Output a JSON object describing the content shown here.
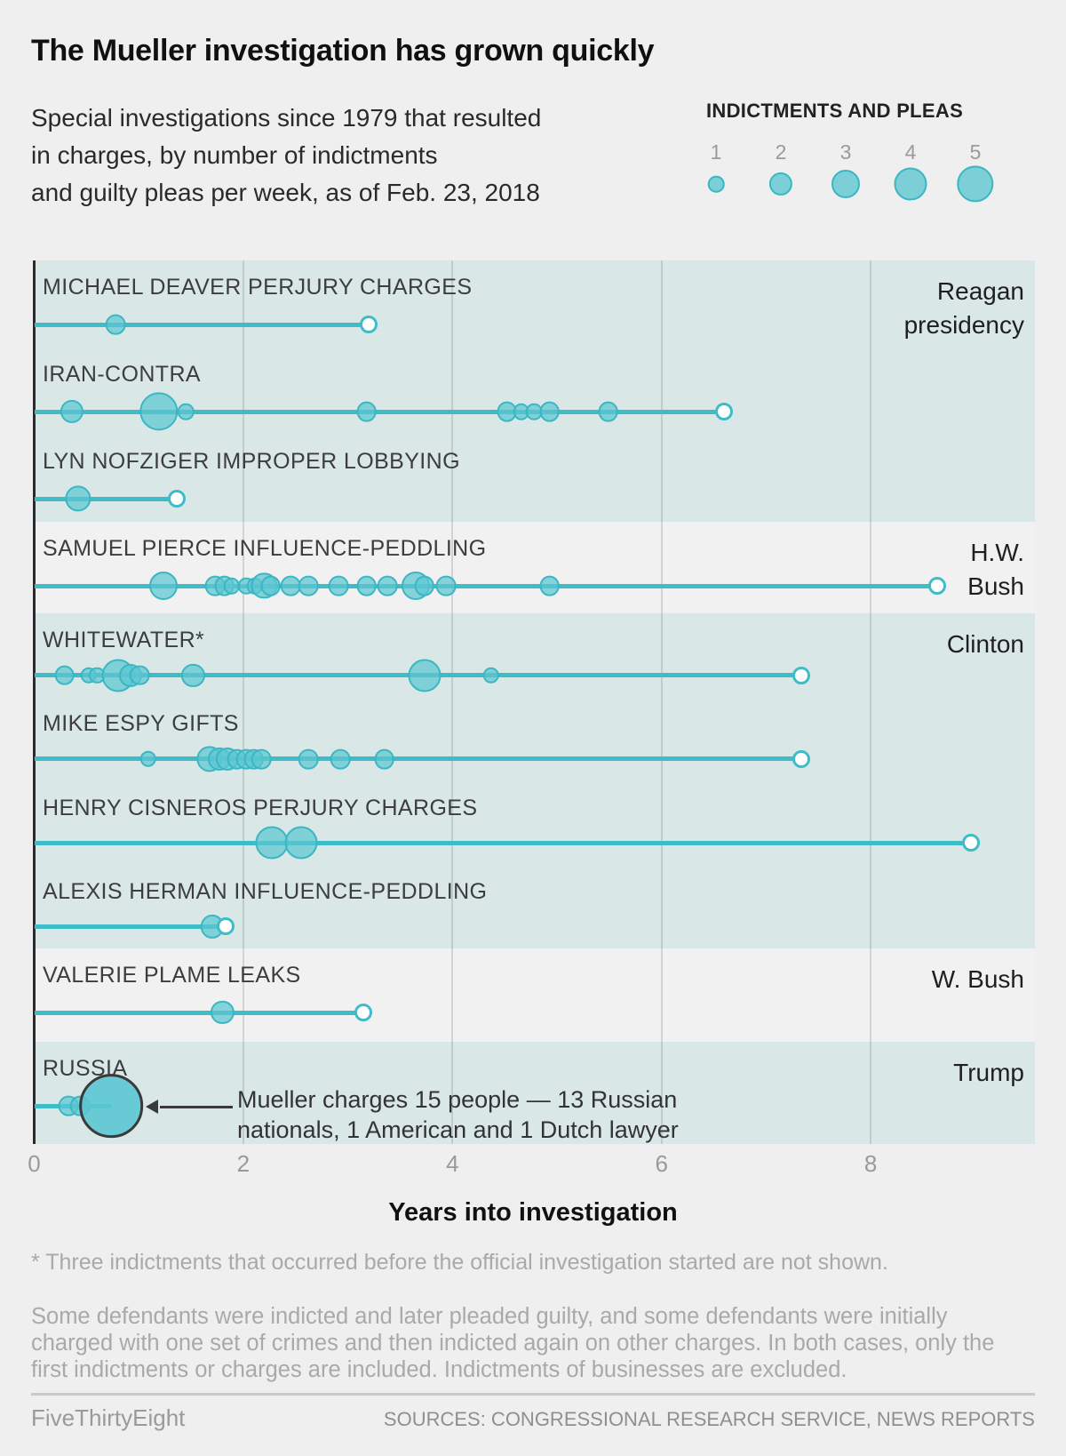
{
  "header": {
    "title": "The Mueller investigation has grown quickly",
    "subtitle_lines": [
      "Special investigations since 1979 that resulted",
      "in charges, by number of indictments",
      "and guilty pleas per week, as of Feb. 23, 2018"
    ],
    "legend": {
      "title": "INDICTMENTS AND PLEAS",
      "items": [
        {
          "label": "1",
          "value": 1
        },
        {
          "label": "2",
          "value": 2
        },
        {
          "label": "3",
          "value": 3
        },
        {
          "label": "4",
          "value": 4
        },
        {
          "label": "5",
          "value": 5
        }
      ]
    }
  },
  "chart_data": {
    "type": "bubble-timeline",
    "x_axis": {
      "ticks": [
        0,
        2,
        4,
        6,
        8
      ],
      "label": "Years into investigation",
      "range": [
        0,
        9.57
      ]
    },
    "bubble_unit": "indictments and pleas per week",
    "colors": {
      "teal_band": "#d9e8e7",
      "gray_band": "#f1f1f1",
      "line": "#3ebcc8",
      "bubble_fill": "#5bc6d1",
      "bubble_stroke": "#3bb7c4",
      "axis": "#2b2b2b"
    },
    "bands": [
      {
        "tint": "teal",
        "president_lines": [
          "Reagan",
          "presidency"
        ],
        "rows": [
          {
            "label": "MICHAEL DEAVER PERJURY CHARGES",
            "end": 3.2,
            "events": [
              {
                "x": 0.78,
                "n": 1.5
              }
            ]
          },
          {
            "label": "IRAN-CONTRA",
            "end": 6.6,
            "events": [
              {
                "x": 0.36,
                "n": 2
              },
              {
                "x": 1.19,
                "n": 5.5
              },
              {
                "x": 1.45,
                "n": 1
              },
              {
                "x": 3.18,
                "n": 1.5
              },
              {
                "x": 4.52,
                "n": 1.5
              },
              {
                "x": 4.66,
                "n": 1
              },
              {
                "x": 4.78,
                "n": 1
              },
              {
                "x": 4.93,
                "n": 1.5
              },
              {
                "x": 5.49,
                "n": 1.5
              }
            ]
          },
          {
            "label": "LYN NOFZIGER IMPROPER LOBBYING",
            "end": 1.36,
            "events": [
              {
                "x": 0.42,
                "n": 2.5
              }
            ]
          }
        ]
      },
      {
        "tint": "gray",
        "president_lines": [
          "H.W.",
          "Bush"
        ],
        "rows": [
          {
            "label": "SAMUEL PIERCE INFLUENCE-PEDDLING",
            "end": 8.64,
            "events": [
              {
                "x": 1.24,
                "n": 3
              },
              {
                "x": 1.73,
                "n": 1.5
              },
              {
                "x": 1.82,
                "n": 1.5
              },
              {
                "x": 1.89,
                "n": 1
              },
              {
                "x": 2.03,
                "n": 1
              },
              {
                "x": 2.11,
                "n": 1
              },
              {
                "x": 2.2,
                "n": 2.5
              },
              {
                "x": 2.26,
                "n": 1.5
              },
              {
                "x": 2.45,
                "n": 1.5
              },
              {
                "x": 2.62,
                "n": 1.5
              },
              {
                "x": 2.91,
                "n": 1.5
              },
              {
                "x": 3.18,
                "n": 1.5
              },
              {
                "x": 3.38,
                "n": 1.5
              },
              {
                "x": 3.65,
                "n": 3
              },
              {
                "x": 3.73,
                "n": 1.5
              },
              {
                "x": 3.94,
                "n": 1.5
              },
              {
                "x": 4.93,
                "n": 1.5
              }
            ]
          }
        ]
      },
      {
        "tint": "teal",
        "president_lines": [
          "Clinton"
        ],
        "rows": [
          {
            "label": "WHITEWATER*",
            "end": 7.34,
            "events": [
              {
                "x": 0.29,
                "n": 1.5
              },
              {
                "x": 0.52,
                "n": 1
              },
              {
                "x": 0.6,
                "n": 1
              },
              {
                "x": 0.8,
                "n": 4
              },
              {
                "x": 0.92,
                "n": 2
              },
              {
                "x": 1.01,
                "n": 1.5
              },
              {
                "x": 1.52,
                "n": 2
              },
              {
                "x": 3.73,
                "n": 4
              },
              {
                "x": 4.37,
                "n": 1
              }
            ]
          },
          {
            "label": "MIKE ESPY GIFTS",
            "end": 7.34,
            "events": [
              {
                "x": 1.09,
                "n": 1
              },
              {
                "x": 1.68,
                "n": 2.5
              },
              {
                "x": 1.77,
                "n": 2
              },
              {
                "x": 1.85,
                "n": 2
              },
              {
                "x": 1.94,
                "n": 1.5
              },
              {
                "x": 2.03,
                "n": 1.5
              },
              {
                "x": 2.1,
                "n": 1.5
              },
              {
                "x": 2.17,
                "n": 1.5
              },
              {
                "x": 2.62,
                "n": 1.5
              },
              {
                "x": 2.93,
                "n": 1.5
              },
              {
                "x": 3.35,
                "n": 1.5
              }
            ]
          },
          {
            "label": "HENRY CISNEROS PERJURY CHARGES",
            "end": 8.96,
            "events": [
              {
                "x": 2.27,
                "n": 4
              },
              {
                "x": 2.55,
                "n": 4
              }
            ]
          },
          {
            "label": "ALEXIS HERMAN INFLUENCE-PEDDLING",
            "end": 1.83,
            "events": [
              {
                "x": 1.7,
                "n": 2
              }
            ]
          }
        ]
      },
      {
        "tint": "gray",
        "president_lines": [
          "W. Bush"
        ],
        "rows": [
          {
            "label": "VALERIE PLAME LEAKS",
            "end": 3.15,
            "events": [
              {
                "x": 1.8,
                "n": 2
              }
            ]
          }
        ]
      },
      {
        "tint": "teal",
        "president_lines": [
          "Trump"
        ],
        "rows": [
          {
            "label": "RUSSIA",
            "end": 0.74,
            "ongoing": true,
            "events": [
              {
                "x": 0.33,
                "n": 1.5
              },
              {
                "x": 0.44,
                "n": 1.5
              },
              {
                "x": 0.735,
                "n": 15,
                "outlined": true
              }
            ]
          }
        ]
      }
    ],
    "annotation": {
      "lines": [
        "Mueller charges 15 people — 13 Russian",
        "nationals, 1 American and 1 Dutch lawyer"
      ]
    }
  },
  "footnotes": {
    "asterisk": "* Three indictments that occurred before the official investigation started are not shown.",
    "methodology": "Some defendants were indicted and later pleaded guilty, and some defendants were initially charged with one set of crimes and then indicted again on other charges. In both cases, only the first indictments or charges are included. Indictments of businesses are excluded."
  },
  "footer": {
    "left": "FiveThirtyEight",
    "right": "SOURCES: CONGRESSIONAL RESEARCH SERVICE, NEWS REPORTS"
  }
}
